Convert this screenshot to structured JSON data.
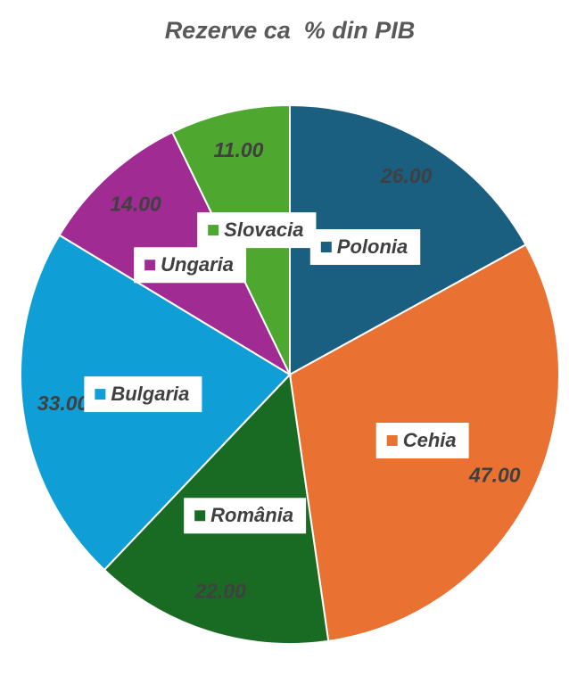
{
  "chart_data": {
    "type": "pie",
    "title": "Rezerve ca  % din PIB",
    "categories": [
      "Polonia",
      "Cehia",
      "România",
      "Bulgaria",
      "Ungaria",
      "Slovacia"
    ],
    "values": [
      26,
      47,
      22,
      33,
      14,
      11
    ],
    "value_labels": [
      "26.00",
      "47.00",
      "22.00",
      "33.00",
      "14.00",
      "11.00"
    ],
    "colors": [
      "#1a5e80",
      "#e97132",
      "#196b24",
      "#0f9ed5",
      "#a02b93",
      "#4ea72e"
    ]
  }
}
